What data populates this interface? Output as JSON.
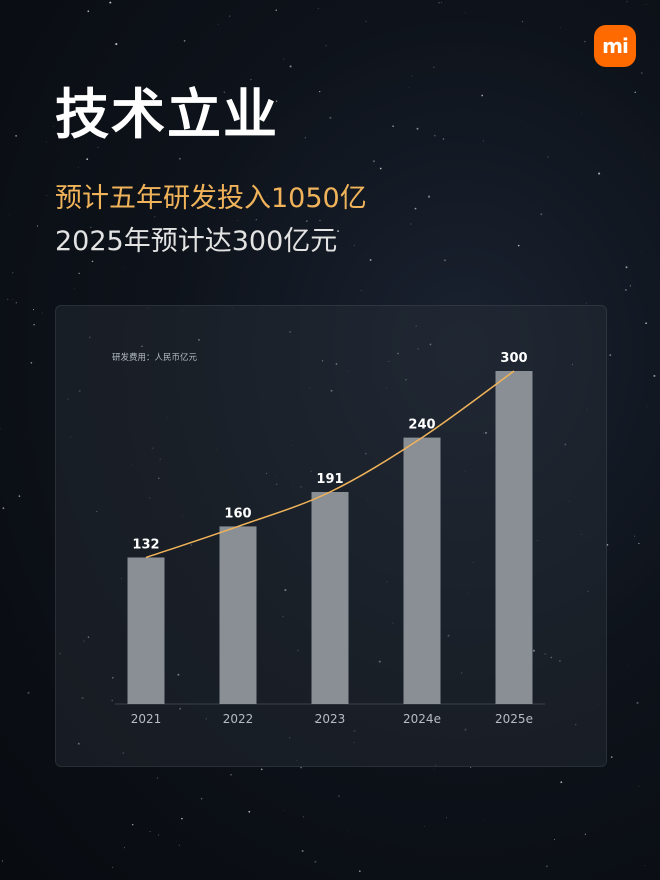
{
  "brand": {
    "logo_text": "mi",
    "logo_color": "#ff6a00"
  },
  "header": {
    "title": "技术立业",
    "subtitle_1": "预计五年研发投入1050亿",
    "subtitle_2": "2025年预计达300亿元"
  },
  "chart_data": {
    "type": "bar",
    "unit_label": "研发费用：人民币亿元",
    "categories": [
      "2021",
      "2022",
      "2023",
      "2024e",
      "2025e"
    ],
    "values": [
      132,
      160,
      191,
      240,
      300
    ],
    "ylim": [
      0,
      300
    ],
    "trend_line": true,
    "grid": false,
    "legend": "none",
    "colors": {
      "bar": "#8a8f96",
      "line": "#f0b35a"
    }
  }
}
